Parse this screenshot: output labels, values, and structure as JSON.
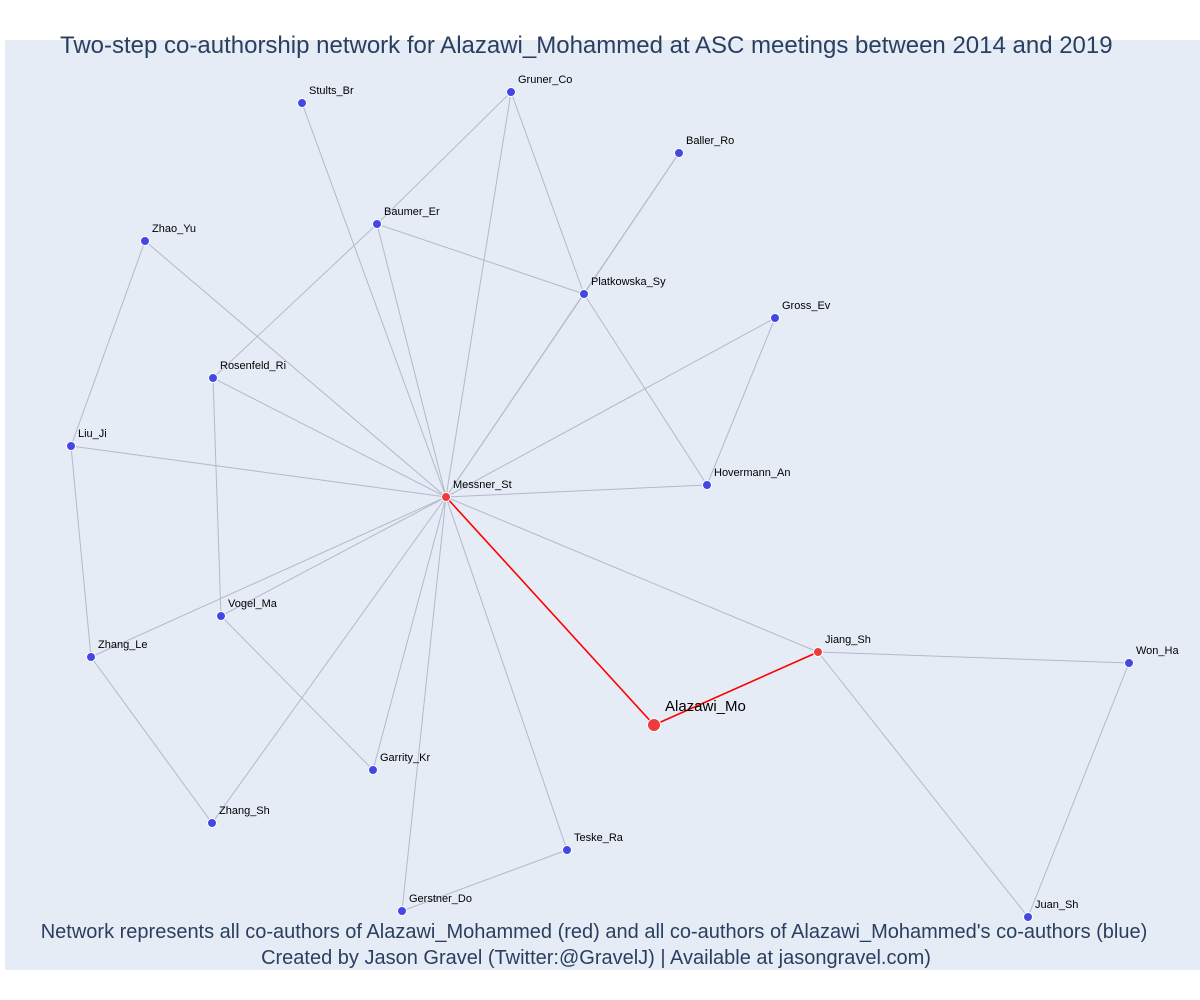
{
  "title": "Two-step co-authorship network for Alazawi_Mohammed at ASC meetings between 2014 and 2019",
  "caption_line1": "Network represents all co-authors of Alazawi_Mohammed (red) and all co-authors of Alazawi_Mohammed's co-authors (blue)",
  "caption_line2": "Created by Jason Gravel (Twitter:@GravelJ) | Available at jasongravel.com)",
  "colors": {
    "plot_background": "#e5ecf6",
    "page_background": "#ffffff",
    "direct_coauthor": "#ef3b3b",
    "second_step_coauthor": "#4447e6",
    "direct_edge": "#ff0000",
    "other_edge": "#b4b8cc",
    "text": "#2a3f5f"
  },
  "network": {
    "focal": "Alazawi_Mo",
    "nodes": [
      {
        "id": "Alazawi_Mo",
        "label": "Alazawi_Mo",
        "group": "focal"
      },
      {
        "id": "Messner_St",
        "label": "Messner_St",
        "group": "direct"
      },
      {
        "id": "Jiang_Sh",
        "label": "Jiang_Sh",
        "group": "direct"
      },
      {
        "id": "Stults_Br",
        "label": "Stults_Br",
        "group": "second"
      },
      {
        "id": "Gruner_Co",
        "label": "Gruner_Co",
        "group": "second"
      },
      {
        "id": "Baller_Ro",
        "label": "Baller_Ro",
        "group": "second"
      },
      {
        "id": "Baumer_Er",
        "label": "Baumer_Er",
        "group": "second"
      },
      {
        "id": "Zhao_Yu",
        "label": "Zhao_Yu",
        "group": "second"
      },
      {
        "id": "Platkowska_Sy",
        "label": "Platkowska_Sy",
        "group": "second"
      },
      {
        "id": "Gross_Ev",
        "label": "Gross_Ev",
        "group": "second"
      },
      {
        "id": "Rosenfeld_Ri",
        "label": "Rosenfeld_Ri",
        "group": "second"
      },
      {
        "id": "Liu_Ji",
        "label": "Liu_Ji",
        "group": "second"
      },
      {
        "id": "Hovermann_An",
        "label": "Hovermann_An",
        "group": "second"
      },
      {
        "id": "Vogel_Ma",
        "label": "Vogel_Ma",
        "group": "second"
      },
      {
        "id": "Zhang_Le",
        "label": "Zhang_Le",
        "group": "second"
      },
      {
        "id": "Won_Ha",
        "label": "Won_Ha",
        "group": "second"
      },
      {
        "id": "Garrity_Kr",
        "label": "Garrity_Kr",
        "group": "second"
      },
      {
        "id": "Zhang_Sh",
        "label": "Zhang_Sh",
        "group": "second"
      },
      {
        "id": "Teske_Ra",
        "label": "Teske_Ra",
        "group": "second"
      },
      {
        "id": "Gerstner_Do",
        "label": "Gerstner_Do",
        "group": "second"
      },
      {
        "id": "Juan_Sh",
        "label": "Juan_Sh",
        "group": "second"
      }
    ],
    "edges": [
      [
        "Alazawi_Mo",
        "Messner_St"
      ],
      [
        "Alazawi_Mo",
        "Jiang_Sh"
      ],
      [
        "Messner_St",
        "Jiang_Sh"
      ],
      [
        "Messner_St",
        "Stults_Br"
      ],
      [
        "Messner_St",
        "Gruner_Co"
      ],
      [
        "Messner_St",
        "Baller_Ro"
      ],
      [
        "Messner_St",
        "Baumer_Er"
      ],
      [
        "Messner_St",
        "Zhao_Yu"
      ],
      [
        "Messner_St",
        "Platkowska_Sy"
      ],
      [
        "Messner_St",
        "Gross_Ev"
      ],
      [
        "Messner_St",
        "Rosenfeld_Ri"
      ],
      [
        "Messner_St",
        "Liu_Ji"
      ],
      [
        "Messner_St",
        "Hovermann_An"
      ],
      [
        "Messner_St",
        "Vogel_Ma"
      ],
      [
        "Messner_St",
        "Zhang_Le"
      ],
      [
        "Messner_St",
        "Garrity_Kr"
      ],
      [
        "Messner_St",
        "Zhang_Sh"
      ],
      [
        "Messner_St",
        "Teske_Ra"
      ],
      [
        "Messner_St",
        "Gerstner_Do"
      ],
      [
        "Gruner_Co",
        "Baumer_Er"
      ],
      [
        "Gruner_Co",
        "Platkowska_Sy"
      ],
      [
        "Baller_Ro",
        "Platkowska_Sy"
      ],
      [
        "Baumer_Er",
        "Platkowska_Sy"
      ],
      [
        "Baumer_Er",
        "Rosenfeld_Ri"
      ],
      [
        "Platkowska_Sy",
        "Hovermann_An"
      ],
      [
        "Gross_Ev",
        "Hovermann_An"
      ],
      [
        "Zhao_Yu",
        "Liu_Ji"
      ],
      [
        "Liu_Ji",
        "Zhang_Le"
      ],
      [
        "Rosenfeld_Ri",
        "Vogel_Ma"
      ],
      [
        "Vogel_Ma",
        "Garrity_Kr"
      ],
      [
        "Zhang_Le",
        "Zhang_Sh"
      ],
      [
        "Teske_Ra",
        "Gerstner_Do"
      ],
      [
        "Jiang_Sh",
        "Won_Ha"
      ],
      [
        "Jiang_Sh",
        "Juan_Sh"
      ],
      [
        "Won_Ha",
        "Juan_Sh"
      ]
    ]
  }
}
